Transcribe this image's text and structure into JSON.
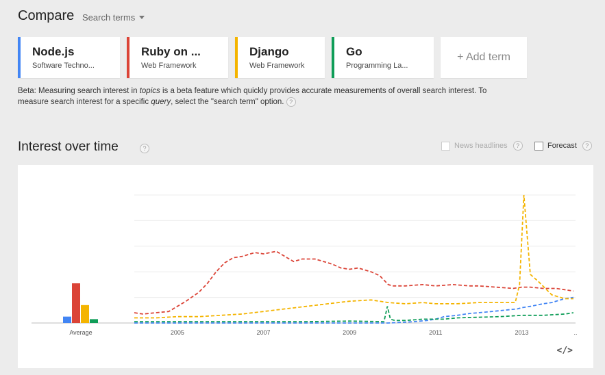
{
  "header": {
    "title": "Compare",
    "mode_label": "Search terms"
  },
  "terms": [
    {
      "name": "Node.js",
      "category": "Software Techno...",
      "color": "#4285f4"
    },
    {
      "name": "Ruby on ...",
      "category": "Web Framework",
      "color": "#db4437"
    },
    {
      "name": "Django",
      "category": "Web Framework",
      "color": "#f4b400"
    },
    {
      "name": "Go",
      "category": "Programming La...",
      "color": "#0f9d58"
    }
  ],
  "add_term_label": "+ Add term",
  "beta_note": {
    "p1": "Beta: Measuring search interest in ",
    "em1": "topics",
    "p2": " is a beta feature which quickly provides accurate measurements of overall search interest. To measure search interest for a specific ",
    "em2": "query",
    "p3": ", select the \"search term\" option."
  },
  "help_glyph": "?",
  "interest_section": {
    "title": "Interest over time",
    "news_headlines_label": "News headlines",
    "forecast_label": "Forecast",
    "embed_glyph": "</>"
  },
  "chart_data": {
    "type": "line",
    "x_tick_labels": [
      "2005",
      "2007",
      "2009",
      "2011",
      "2013",
      ".."
    ],
    "x_ticks": [
      2005,
      2007,
      2009,
      2011,
      2013,
      2014.25
    ],
    "xlim": [
      2004.0,
      2014.25
    ],
    "ylim": [
      0,
      100
    ],
    "grid": true,
    "average": {
      "label": "Average",
      "values": [
        5,
        31,
        14,
        3
      ]
    },
    "series": [
      {
        "key": "nodejs",
        "color": "#4285f4",
        "x": [
          2004,
          2005,
          2006,
          2007,
          2008,
          2009,
          2009.9,
          2010.2,
          2010.5,
          2010.8,
          2011.0,
          2011.2,
          2011.5,
          2011.8,
          2012.0,
          2012.3,
          2012.6,
          2012.9,
          2013.0,
          2013.2,
          2013.5,
          2013.7,
          2013.9,
          2014.0,
          2014.2
        ],
        "y": [
          0,
          0,
          0,
          0,
          0,
          0,
          0,
          0.5,
          1,
          2,
          3,
          5,
          6,
          7.5,
          8,
          9,
          10,
          11,
          12,
          13,
          15,
          16,
          18,
          19,
          20
        ]
      },
      {
        "key": "ruby",
        "color": "#db4437",
        "x": [
          2004.0,
          2004.2,
          2004.5,
          2004.8,
          2005.0,
          2005.2,
          2005.5,
          2005.7,
          2005.9,
          2006.1,
          2006.3,
          2006.5,
          2006.8,
          2007.0,
          2007.3,
          2007.5,
          2007.7,
          2007.9,
          2008.2,
          2008.4,
          2008.6,
          2008.8,
          2009.0,
          2009.2,
          2009.5,
          2009.7,
          2009.9,
          2010.0,
          2010.3,
          2010.7,
          2011.0,
          2011.4,
          2011.8,
          2012.0,
          2012.4,
          2012.8,
          2013.0,
          2013.2,
          2013.5,
          2013.8,
          2014.0,
          2014.2
        ],
        "y": [
          8,
          7,
          8,
          9,
          13,
          17,
          24,
          31,
          40,
          47,
          51,
          52,
          55,
          54,
          56,
          52,
          48,
          50,
          50,
          48,
          46,
          43,
          42,
          43,
          40,
          37,
          30,
          29,
          29,
          30,
          29,
          30,
          29,
          29,
          28,
          27,
          28,
          28,
          27,
          27,
          26,
          25
        ]
      },
      {
        "key": "django",
        "color": "#f4b400",
        "x": [
          2004.0,
          2004.5,
          2005.0,
          2005.5,
          2006.0,
          2006.5,
          2007.0,
          2007.5,
          2008.0,
          2008.5,
          2009.0,
          2009.5,
          2009.9,
          2010.3,
          2010.7,
          2011.0,
          2011.5,
          2012.0,
          2012.5,
          2012.85,
          2012.95,
          2013.05,
          2013.2,
          2013.4,
          2013.7,
          2014.0,
          2014.2
        ],
        "y": [
          4,
          4,
          5,
          5,
          6,
          7,
          9,
          11,
          13,
          15,
          17,
          18,
          16,
          15,
          16,
          15,
          15,
          16,
          16,
          16,
          30,
          100,
          38,
          32,
          22,
          19,
          19
        ]
      },
      {
        "key": "go",
        "color": "#0f9d58",
        "x": [
          2004.0,
          2005.0,
          2006.0,
          2007.0,
          2008.0,
          2009.0,
          2009.8,
          2009.88,
          2009.95,
          2010.05,
          2010.3,
          2010.7,
          2011.0,
          2011.2,
          2011.5,
          2012.0,
          2012.5,
          2013.0,
          2013.5,
          2014.0,
          2014.2
        ],
        "y": [
          1,
          1,
          1,
          1,
          1,
          1.5,
          1,
          13,
          3,
          2,
          2,
          3,
          3,
          3,
          4,
          4.5,
          5,
          6,
          6,
          7,
          8
        ]
      }
    ]
  }
}
